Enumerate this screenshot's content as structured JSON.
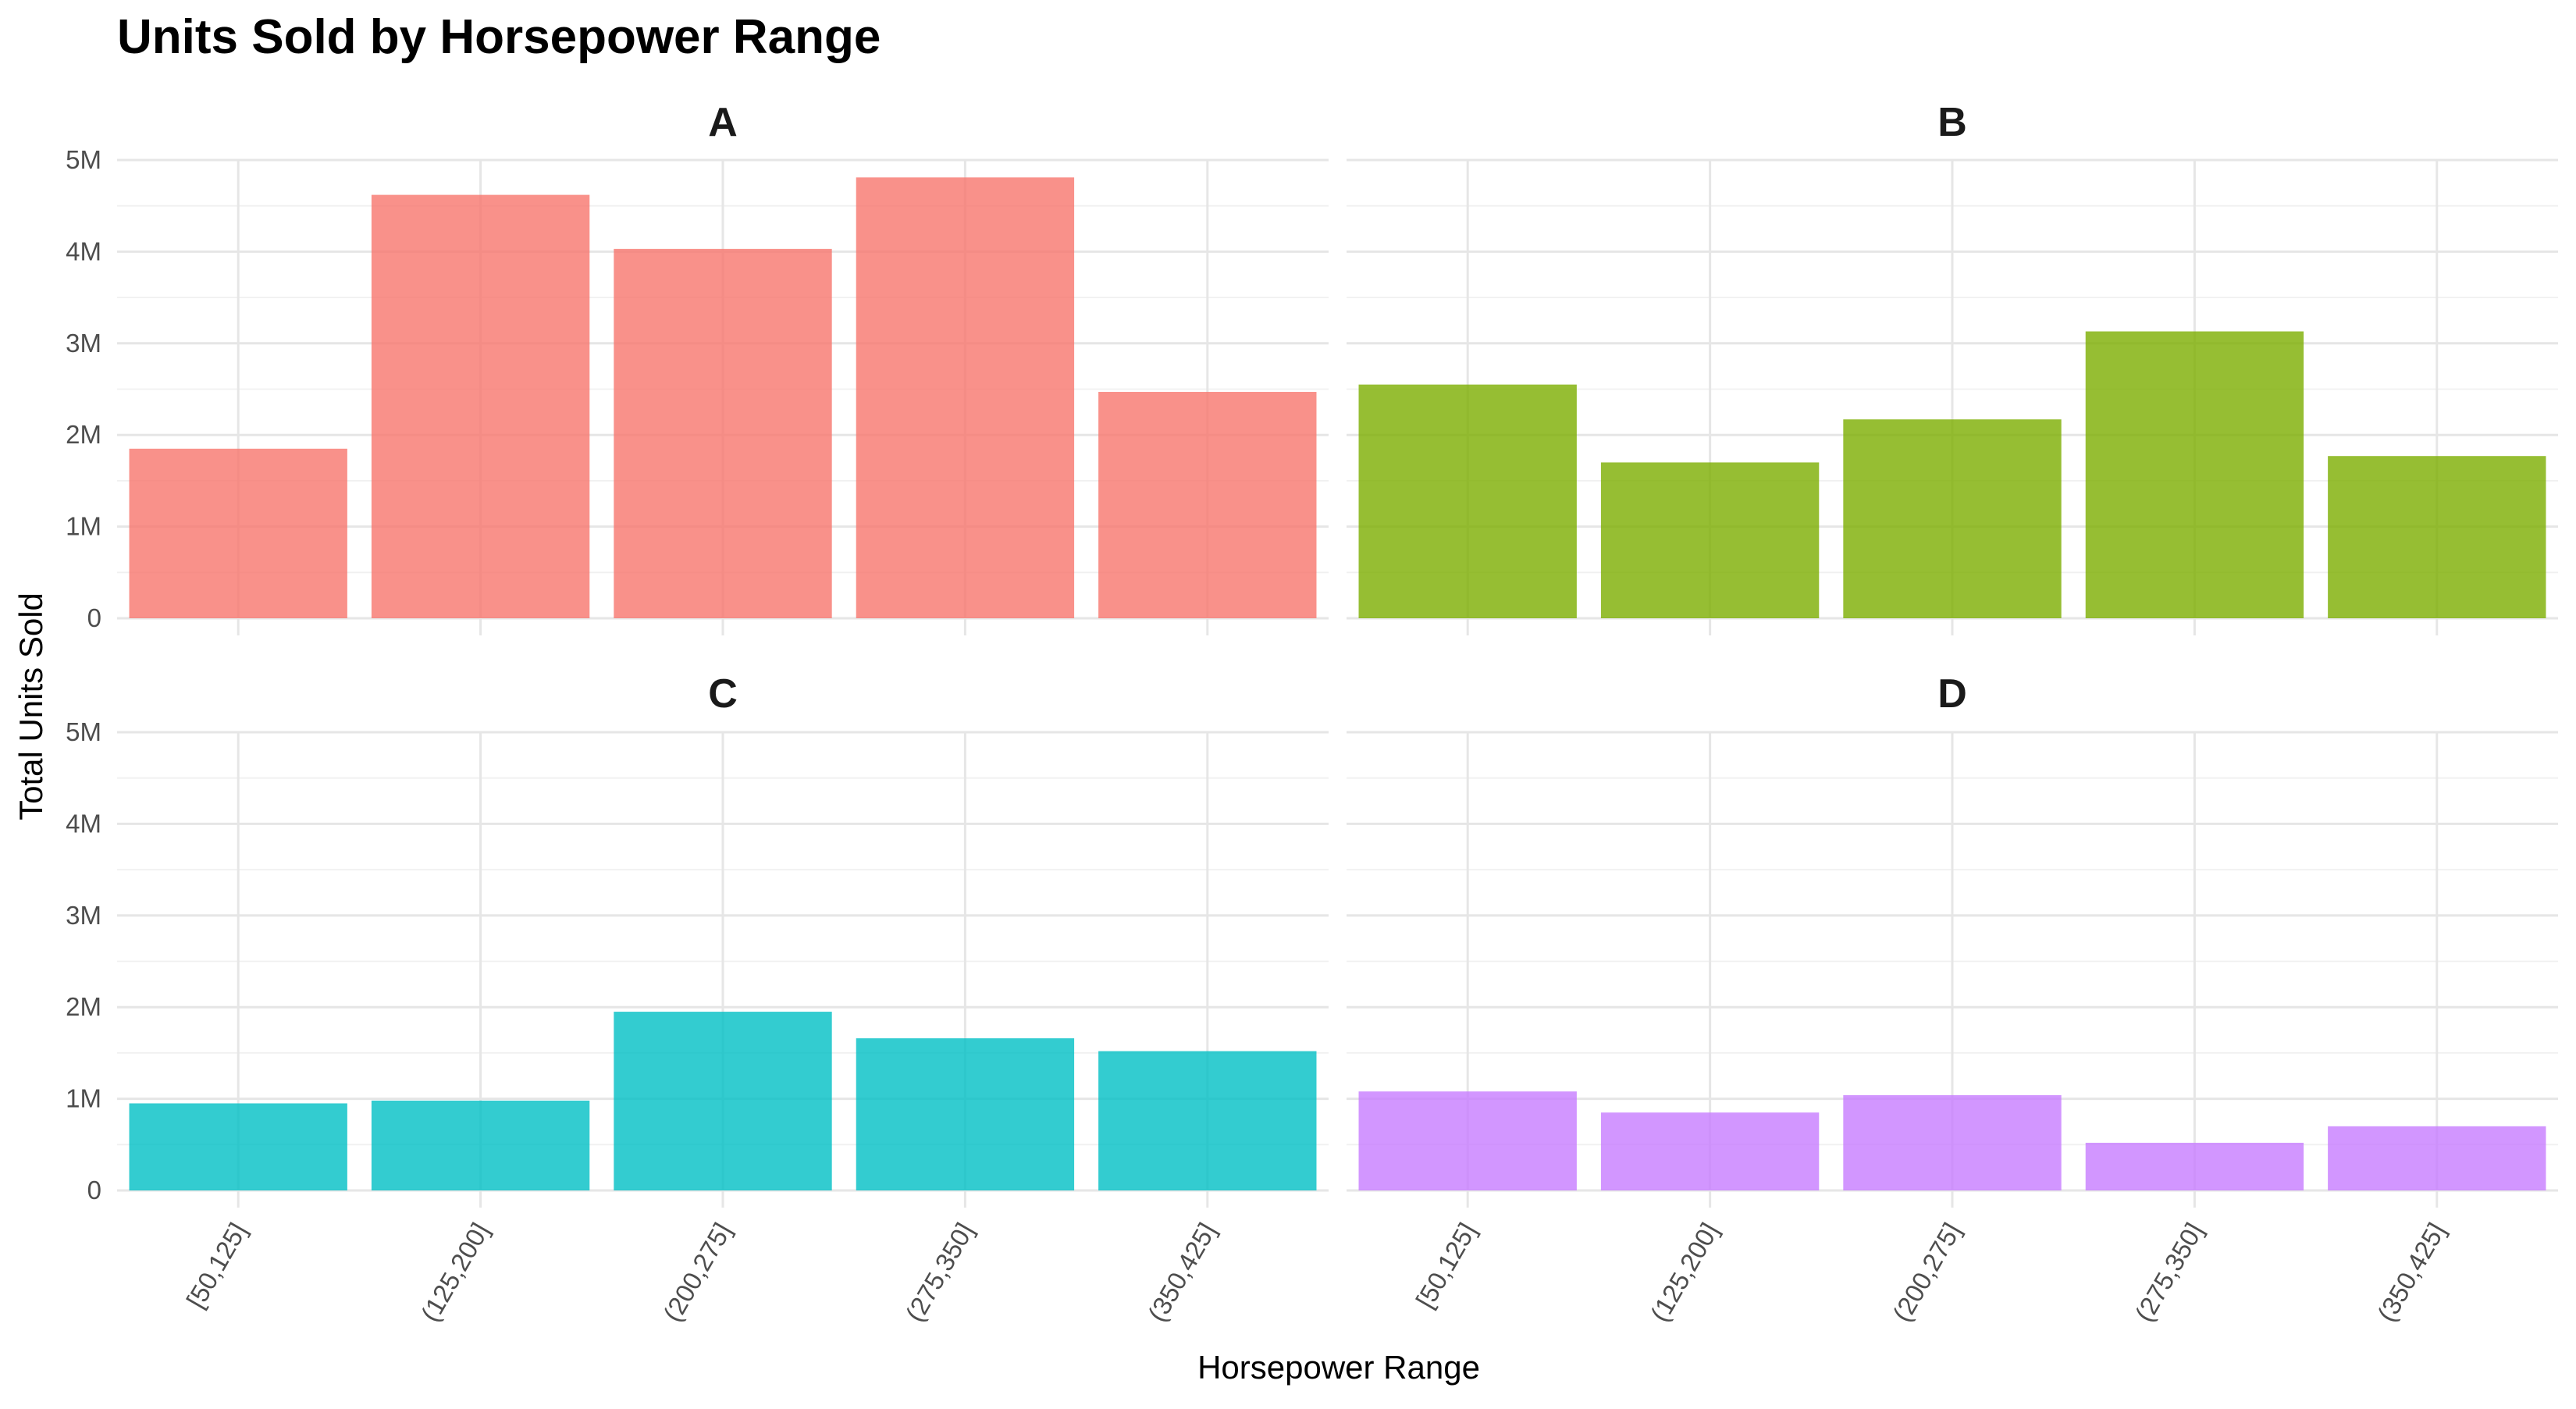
{
  "chart_data": {
    "type": "bar",
    "title": "Units Sold by Horsepower Range",
    "xlabel": "Horsepower Range",
    "ylabel": "Total Units Sold",
    "categories": [
      "[50,125]",
      "(125,200]",
      "(200,275]",
      "(275,350]",
      "(350,425]"
    ],
    "ylim": [
      0,
      5000000
    ],
    "y_ticks": [
      0,
      1000000,
      2000000,
      3000000,
      4000000,
      5000000
    ],
    "y_tick_labels": [
      "0",
      "1M",
      "2M",
      "3M",
      "4M",
      "5M"
    ],
    "grid": true,
    "legend": "none",
    "facets": [
      {
        "name": "A",
        "color": "#F8766D",
        "values": [
          1850000,
          4620000,
          4030000,
          4810000,
          2470000
        ]
      },
      {
        "name": "B",
        "color": "#7CAE00",
        "values": [
          2550000,
          1700000,
          2170000,
          3130000,
          1770000
        ]
      },
      {
        "name": "C",
        "color": "#00BFC4",
        "values": [
          950000,
          980000,
          1950000,
          1660000,
          1520000
        ]
      },
      {
        "name": "D",
        "color": "#C77CFF",
        "values": [
          1080000,
          850000,
          1040000,
          520000,
          700000
        ]
      }
    ]
  }
}
